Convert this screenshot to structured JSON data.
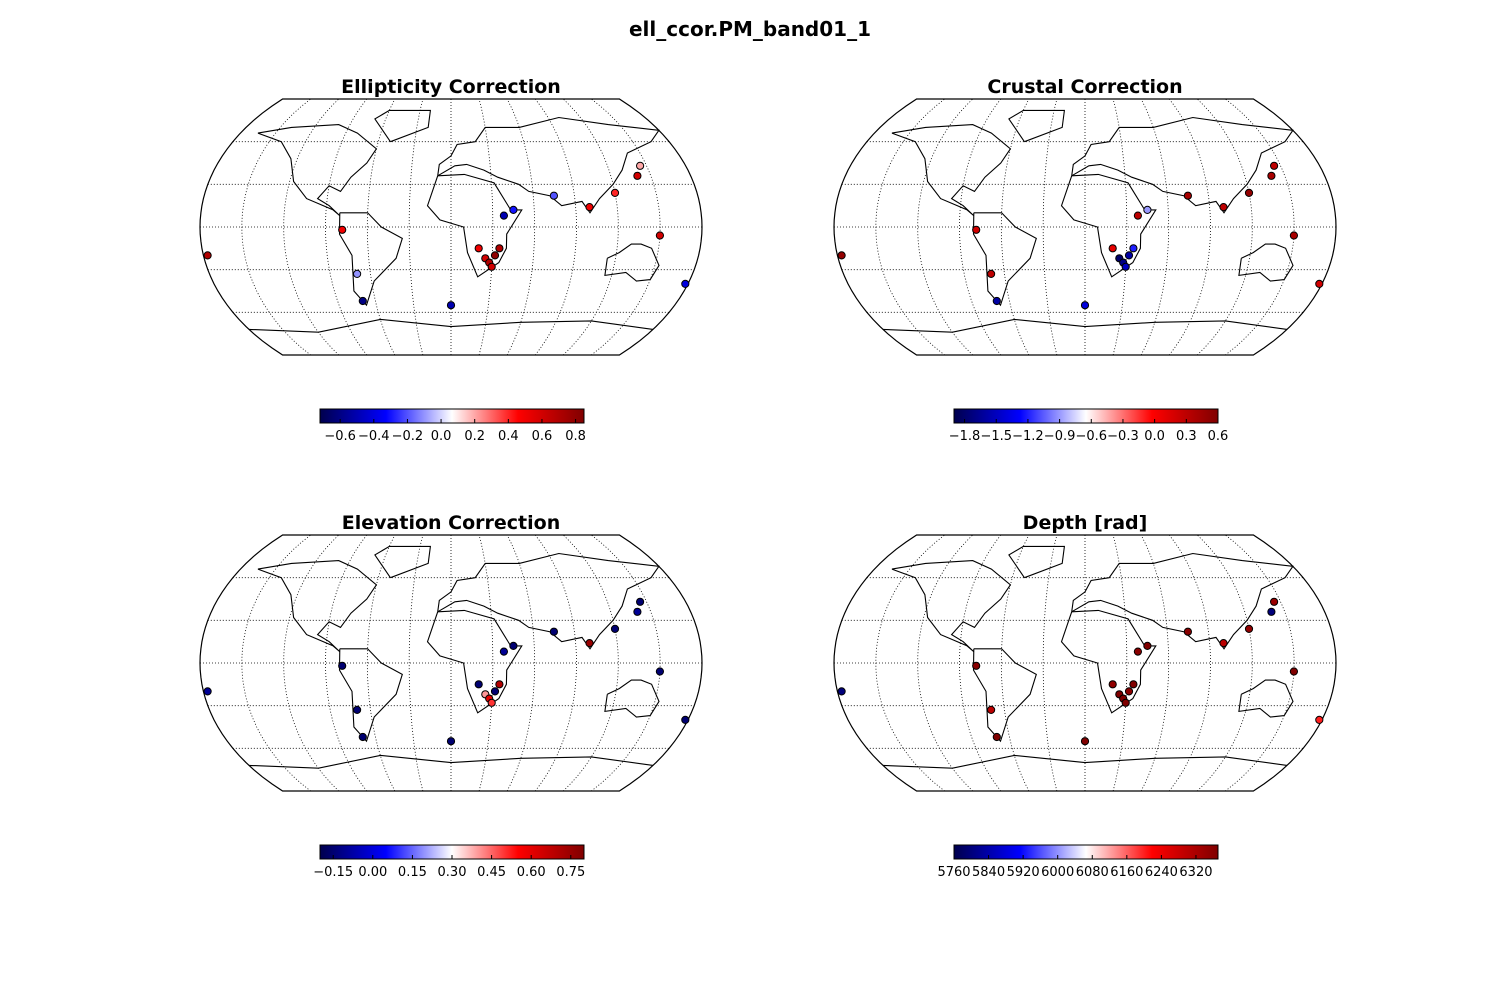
{
  "figure": {
    "title": "ell_ccor.PM_band01_1"
  },
  "colors": {
    "colormap": [
      "#00004d",
      "#0000ff",
      "#ffffff",
      "#ff0000",
      "#800000"
    ],
    "land_outline": "#000000",
    "graticule": "#000000"
  },
  "panels": [
    {
      "title": "Ellipticity Correction",
      "colorbar": {
        "ticks": [
          "−0.6",
          "−0.4",
          "−0.2",
          "0.0",
          "0.2",
          "0.4",
          "0.6",
          "0.8"
        ],
        "tick_values": [
          -0.6,
          -0.4,
          -0.2,
          0.0,
          0.2,
          0.4,
          0.6,
          0.8
        ],
        "vmin": -0.72,
        "vmax": 0.85
      }
    },
    {
      "title": "Crustal Correction",
      "colorbar": {
        "ticks": [
          "−1.8",
          "−1.5",
          "−1.2",
          "−0.9",
          "−0.6",
          "−0.3",
          "0.0",
          "0.3",
          "0.6"
        ],
        "tick_values": [
          -1.8,
          -1.5,
          -1.2,
          -0.9,
          -0.6,
          -0.3,
          0.0,
          0.3,
          0.6
        ],
        "vmin": -1.9,
        "vmax": 0.6
      }
    },
    {
      "title": "Elevation Correction",
      "colorbar": {
        "ticks": [
          "−0.15",
          "0.00",
          "0.15",
          "0.30",
          "0.45",
          "0.60",
          "0.75"
        ],
        "tick_values": [
          -0.15,
          0.0,
          0.15,
          0.3,
          0.45,
          0.6,
          0.75
        ],
        "vmin": -0.2,
        "vmax": 0.8
      }
    },
    {
      "title": "Depth [rad]",
      "colorbar": {
        "ticks": [
          "5760",
          "5840",
          "5920",
          "6000",
          "6080",
          "6160",
          "6240",
          "6320"
        ],
        "tick_values": [
          5760,
          5840,
          5920,
          6000,
          6080,
          6160,
          6240,
          6320
        ],
        "vmin": 5760,
        "vmax": 6371
      }
    }
  ],
  "chart_data": {
    "type": "scatter",
    "projection": "robinson",
    "grid": true,
    "series": [
      {
        "name": "Ellipticity Correction",
        "points": [
          {
            "lon": 25,
            "lat": -22,
            "value": 0.6
          },
          {
            "lon": 28,
            "lat": -25,
            "value": 0.7
          },
          {
            "lon": 32,
            "lat": -20,
            "value": 0.8
          },
          {
            "lon": 30,
            "lat": -28,
            "value": 0.6
          },
          {
            "lon": 20,
            "lat": -15,
            "value": 0.5
          },
          {
            "lon": 35,
            "lat": -15,
            "value": 0.7
          },
          {
            "lon": 38,
            "lat": 8,
            "value": -0.5
          },
          {
            "lon": 45,
            "lat": 12,
            "value": -0.3
          },
          {
            "lon": 75,
            "lat": 22,
            "value": -0.2
          },
          {
            "lon": 100,
            "lat": 14,
            "value": 0.5
          },
          {
            "lon": 120,
            "lat": 24,
            "value": 0.4
          },
          {
            "lon": 140,
            "lat": 36,
            "value": 0.6
          },
          {
            "lon": 145,
            "lat": 43,
            "value": 0.2
          },
          {
            "lon": -78,
            "lat": -2,
            "value": 0.5
          },
          {
            "lon": -70,
            "lat": -33,
            "value": -0.1
          },
          {
            "lon": -70,
            "lat": -52,
            "value": -0.6
          },
          {
            "lon": -177,
            "lat": -20,
            "value": 0.7
          },
          {
            "lon": 0,
            "lat": -55,
            "value": -0.5
          },
          {
            "lon": 178,
            "lat": -40,
            "value": -0.4
          },
          {
            "lon": 150,
            "lat": -6,
            "value": 0.6
          }
        ]
      },
      {
        "name": "Crustal Correction",
        "points": [
          {
            "lon": 25,
            "lat": -22,
            "value": -1.8
          },
          {
            "lon": 28,
            "lat": -25,
            "value": -1.7
          },
          {
            "lon": 32,
            "lat": -20,
            "value": -1.6
          },
          {
            "lon": 30,
            "lat": -28,
            "value": -1.5
          },
          {
            "lon": 20,
            "lat": -15,
            "value": 0.1
          },
          {
            "lon": 35,
            "lat": -15,
            "value": -1.2
          },
          {
            "lon": 38,
            "lat": 8,
            "value": 0.3
          },
          {
            "lon": 45,
            "lat": 12,
            "value": -0.9
          },
          {
            "lon": 75,
            "lat": 22,
            "value": 0.4
          },
          {
            "lon": 100,
            "lat": 14,
            "value": 0.3
          },
          {
            "lon": 120,
            "lat": 24,
            "value": 0.5
          },
          {
            "lon": 140,
            "lat": 36,
            "value": 0.4
          },
          {
            "lon": 145,
            "lat": 43,
            "value": 0.3
          },
          {
            "lon": -78,
            "lat": -2,
            "value": 0.2
          },
          {
            "lon": -70,
            "lat": -33,
            "value": 0.3
          },
          {
            "lon": -70,
            "lat": -52,
            "value": -1.6
          },
          {
            "lon": -177,
            "lat": -20,
            "value": 0.5
          },
          {
            "lon": 0,
            "lat": -55,
            "value": -1.4
          },
          {
            "lon": 178,
            "lat": -40,
            "value": 0.2
          },
          {
            "lon": 150,
            "lat": -6,
            "value": 0.4
          }
        ]
      },
      {
        "name": "Elevation Correction",
        "points": [
          {
            "lon": 25,
            "lat": -22,
            "value": 0.4
          },
          {
            "lon": 28,
            "lat": -25,
            "value": 0.6
          },
          {
            "lon": 32,
            "lat": -20,
            "value": -0.15
          },
          {
            "lon": 30,
            "lat": -28,
            "value": 0.5
          },
          {
            "lon": 20,
            "lat": -15,
            "value": -0.15
          },
          {
            "lon": 35,
            "lat": -15,
            "value": 0.7
          },
          {
            "lon": 38,
            "lat": 8,
            "value": -0.1
          },
          {
            "lon": 45,
            "lat": 12,
            "value": -0.15
          },
          {
            "lon": 75,
            "lat": 22,
            "value": -0.15
          },
          {
            "lon": 100,
            "lat": 14,
            "value": 0.75
          },
          {
            "lon": 120,
            "lat": 24,
            "value": -0.15
          },
          {
            "lon": 140,
            "lat": 36,
            "value": -0.1
          },
          {
            "lon": 145,
            "lat": 43,
            "value": -0.15
          },
          {
            "lon": -78,
            "lat": -2,
            "value": -0.15
          },
          {
            "lon": -70,
            "lat": -33,
            "value": -0.15
          },
          {
            "lon": -70,
            "lat": -52,
            "value": -0.15
          },
          {
            "lon": -177,
            "lat": -20,
            "value": -0.1
          },
          {
            "lon": 0,
            "lat": -55,
            "value": -0.15
          },
          {
            "lon": 178,
            "lat": -40,
            "value": -0.15
          },
          {
            "lon": 150,
            "lat": -6,
            "value": -0.15
          }
        ]
      },
      {
        "name": "Depth [rad]",
        "points": [
          {
            "lon": 25,
            "lat": -22,
            "value": 6371
          },
          {
            "lon": 28,
            "lat": -25,
            "value": 6371
          },
          {
            "lon": 32,
            "lat": -20,
            "value": 6360
          },
          {
            "lon": 30,
            "lat": -28,
            "value": 6371
          },
          {
            "lon": 20,
            "lat": -15,
            "value": 6350
          },
          {
            "lon": 35,
            "lat": -15,
            "value": 6371
          },
          {
            "lon": 38,
            "lat": 8,
            "value": 6360
          },
          {
            "lon": 45,
            "lat": 12,
            "value": 6371
          },
          {
            "lon": 75,
            "lat": 22,
            "value": 6360
          },
          {
            "lon": 100,
            "lat": 14,
            "value": 6300
          },
          {
            "lon": 120,
            "lat": 24,
            "value": 6350
          },
          {
            "lon": 140,
            "lat": 36,
            "value": 5800
          },
          {
            "lon": 145,
            "lat": 43,
            "value": 6340
          },
          {
            "lon": -78,
            "lat": -2,
            "value": 6360
          },
          {
            "lon": -70,
            "lat": -33,
            "value": 6300
          },
          {
            "lon": -70,
            "lat": -52,
            "value": 6371
          },
          {
            "lon": -177,
            "lat": -20,
            "value": 5800
          },
          {
            "lon": 0,
            "lat": -55,
            "value": 6371
          },
          {
            "lon": 178,
            "lat": -40,
            "value": 6200
          },
          {
            "lon": 150,
            "lat": -6,
            "value": 6371
          }
        ]
      }
    ]
  }
}
